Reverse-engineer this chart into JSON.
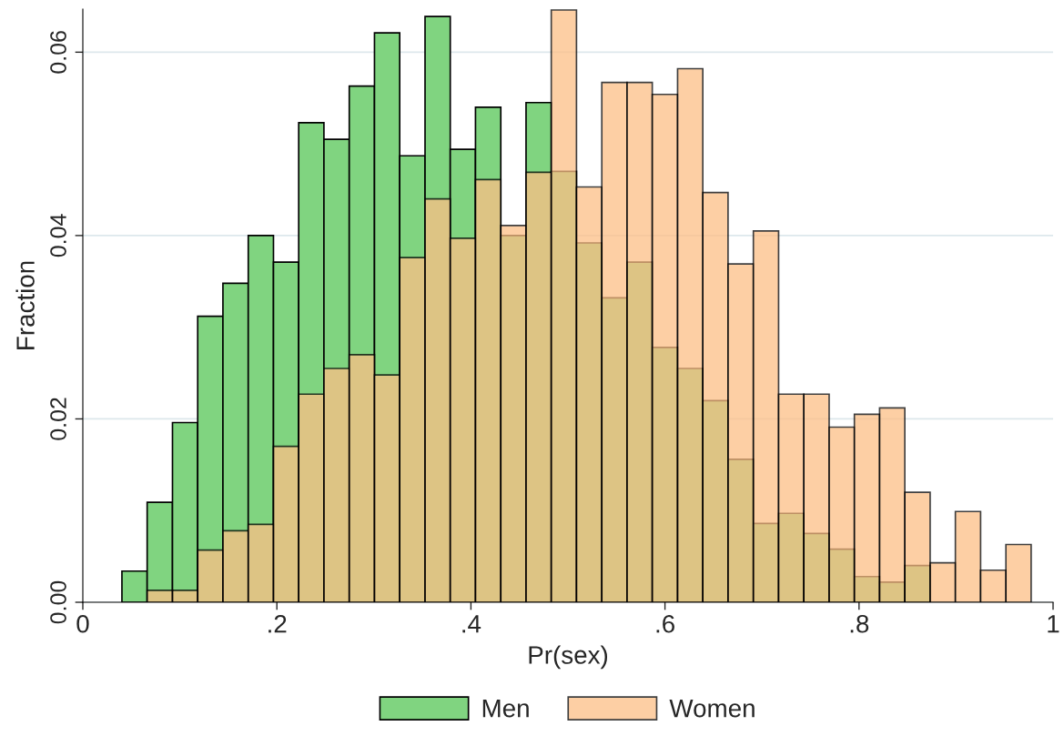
{
  "chart_data": {
    "type": "histogram",
    "xlabel": "Pr(sex)",
    "ylabel": "Fraction",
    "bins": [
      0.0403,
      0.0663,
      0.0924,
      0.1184,
      0.1444,
      0.1705,
      0.1965,
      0.2225,
      0.2485,
      0.2746,
      0.3006,
      0.3266,
      0.3527,
      0.3787,
      0.4047,
      0.4308,
      0.4568,
      0.4828,
      0.5088,
      0.5349,
      0.5609,
      0.5869,
      0.613,
      0.639,
      0.665,
      0.6911,
      0.7171,
      0.7431,
      0.7692,
      0.7952,
      0.8212,
      0.8472,
      0.8733,
      0.8993,
      0.9253,
      0.9514,
      0.9774
    ],
    "series": [
      {
        "name": "Men",
        "color": "#80d480",
        "values": [
          0.0034,
          0.0109,
          0.0196,
          0.0312,
          0.0348,
          0.04,
          0.0371,
          0.0523,
          0.0505,
          0.0563,
          0.0621,
          0.0487,
          0.0639,
          0.0494,
          0.054,
          0.04,
          0.0545,
          0.047,
          0.0392,
          0.0332,
          0.0371,
          0.0278,
          0.0255,
          0.022,
          0.0156,
          0.0086,
          0.0097,
          0.0075,
          0.0058,
          0.0028,
          0.0022,
          0.004,
          null,
          null,
          null,
          null
        ]
      },
      {
        "name": "Women",
        "color": "#fdbf86",
        "values": [
          null,
          0.0013,
          0.0013,
          0.0057,
          0.0078,
          0.0085,
          0.017,
          0.0227,
          0.0255,
          0.027,
          0.0248,
          0.0376,
          0.044,
          0.0397,
          0.0461,
          0.0411,
          0.0469,
          0.0646,
          0.0453,
          0.0567,
          0.0567,
          0.0554,
          0.0582,
          0.0447,
          0.0369,
          0.0405,
          0.0227,
          0.0227,
          0.0191,
          0.0205,
          0.0212,
          0.012,
          0.0043,
          0.0099,
          0.0035,
          0.0063
        ]
      }
    ],
    "xlim": [
      0,
      1
    ],
    "xticks": [
      0,
      {
        "value": 0.2,
        "label": ".2"
      },
      {
        "value": 0.4,
        "label": ".4"
      },
      {
        "value": 0.6,
        "label": ".6"
      },
      {
        "value": 0.8,
        "label": ".8"
      },
      1
    ],
    "ylim": [
      0,
      0.0647
    ],
    "yticks": [
      {
        "value": 0,
        "label": "0.00"
      },
      {
        "value": 0.02,
        "label": "0.02"
      },
      {
        "value": 0.04,
        "label": "0.04"
      },
      {
        "value": 0.06,
        "label": "0.06"
      }
    ],
    "grid": "y",
    "legend": "bottom"
  }
}
